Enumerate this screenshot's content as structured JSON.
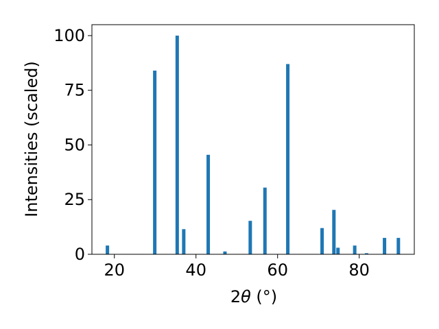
{
  "chart_data": {
    "type": "bar",
    "title": "",
    "xlabel_prefix": "2",
    "xlabel_theta": "θ",
    "xlabel_unit": " (°)",
    "ylabel": "Intensities (scaled)",
    "xlim": [
      14.5,
      93.5
    ],
    "ylim": [
      0,
      105
    ],
    "grid": false,
    "legend": "none",
    "bar_color": "#1f77b4",
    "x_ticks": [
      20,
      40,
      60,
      80
    ],
    "y_ticks": [
      0,
      25,
      50,
      75,
      100
    ],
    "x": [
      18.3,
      29.9,
      35.4,
      37.0,
      43.0,
      47.1,
      53.3,
      56.9,
      62.5,
      70.9,
      73.8,
      74.8,
      78.9,
      81.8,
      86.2,
      89.6
    ],
    "values": [
      4.0,
      84.0,
      100.0,
      11.5,
      45.5,
      1.3,
      15.3,
      30.5,
      87.0,
      12.0,
      20.3,
      3.0,
      4.0,
      0.5,
      7.5,
      7.5
    ]
  }
}
